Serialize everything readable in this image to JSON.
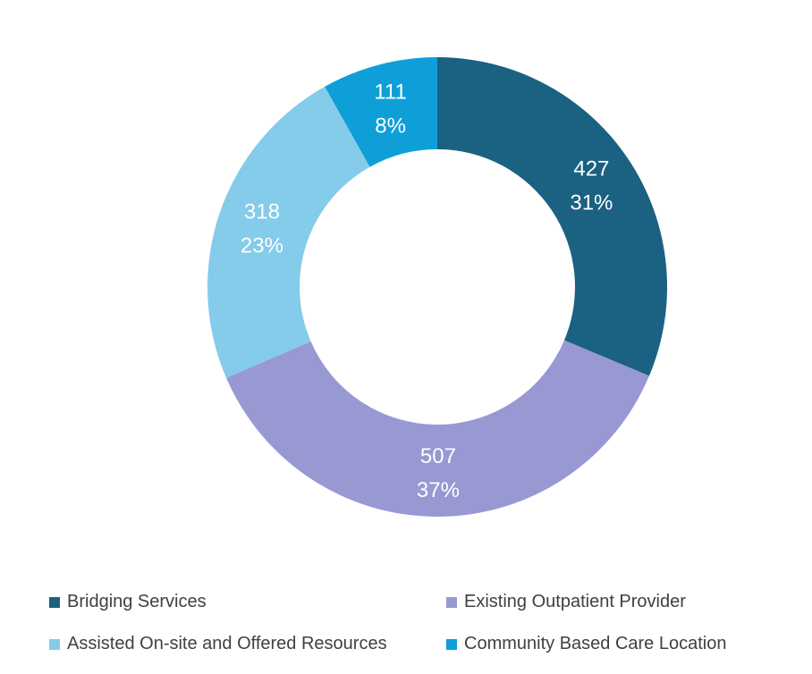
{
  "chart_data": {
    "type": "pie",
    "donut": true,
    "title": "",
    "start_angle": "top, clockwise",
    "legend_position": "bottom",
    "slices": [
      {
        "name": "Bridging Services",
        "value": 427,
        "percent": "31%",
        "color": "#1b6182"
      },
      {
        "name": "Existing Outpatient Provider",
        "value": 507,
        "percent": "37%",
        "color": "#9899d3"
      },
      {
        "name": "Assisted On-site and Offered Resources",
        "value": 318,
        "percent": "23%",
        "color": "#85cbea"
      },
      {
        "name": "Community Based Care Location",
        "value": 111,
        "percent": "8%",
        "color": "#0e9fd8"
      }
    ]
  }
}
